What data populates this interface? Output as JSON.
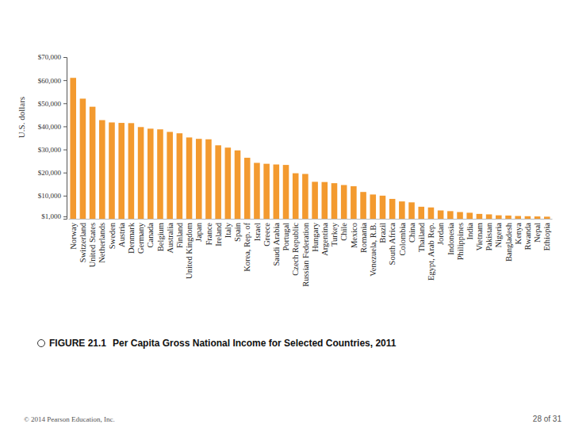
{
  "chart_data": {
    "type": "bar",
    "title": "Per Capita Gross National Income for Selected Countries, 2011",
    "y_label": "U.S. dollars",
    "categories": [
      "Norway",
      "Switzerland",
      "United States",
      "Netherlands",
      "Sweden",
      "Austria",
      "Denmark",
      "Germany",
      "Canada",
      "Belgium",
      "Australia",
      "Finland",
      "United Kingdom",
      "Japan",
      "France",
      "Ireland",
      "Italy",
      "Spain",
      "Korea, Rep. of",
      "Israel",
      "Greece",
      "Saudi Arabia",
      "Portugal",
      "Czech Republic",
      "Russian Federation",
      "Hungary",
      "Argentina",
      "Turkey",
      "Chile",
      "Mexico",
      "Romania",
      "Venezuela, R.B.",
      "Brazil",
      "South Africa",
      "Colombia",
      "China",
      "Thailand",
      "Egypt, Arab Rep.",
      "Jordan",
      "Indonesia",
      "Philippines",
      "India",
      "Vietnam",
      "Pakistan",
      "Nigeria",
      "Bangladesh",
      "Kenya",
      "Rwanda",
      "Nepal",
      "Ethiopia"
    ],
    "values": [
      61000,
      52000,
      48500,
      42700,
      41700,
      41500,
      41400,
      39700,
      39000,
      38700,
      37600,
      37000,
      35200,
      34600,
      34400,
      31800,
      30800,
      29600,
      26400,
      24200,
      23800,
      23500,
      23300,
      19700,
      19400,
      16000,
      15900,
      15400,
      14600,
      14100,
      11600,
      10500,
      10000,
      8600,
      7500,
      7100,
      5200,
      4900,
      3600,
      3300,
      2900,
      2600,
      2100,
      1900,
      1500,
      1400,
      1200,
      1100,
      1000,
      900
    ],
    "color": "#f39a2f",
    "ylim": [
      0,
      70000
    ],
    "yticks": [
      {
        "value": 1000,
        "label": "$1,000"
      },
      {
        "value": 10000,
        "label": "$10,000"
      },
      {
        "value": 20000,
        "label": "$20,000"
      },
      {
        "value": 30000,
        "label": "$30,000"
      },
      {
        "value": 40000,
        "label": "$40,000"
      },
      {
        "value": 50000,
        "label": "$50,000"
      },
      {
        "value": 60000,
        "label": "$60,000"
      },
      {
        "value": 70000,
        "label": "$70,000"
      }
    ],
    "grid": false
  },
  "figure": {
    "label": "FIGURE 21.1"
  },
  "footer": {
    "copyright": "© 2014 Pearson Education, Inc.",
    "page": "28 of 31"
  }
}
